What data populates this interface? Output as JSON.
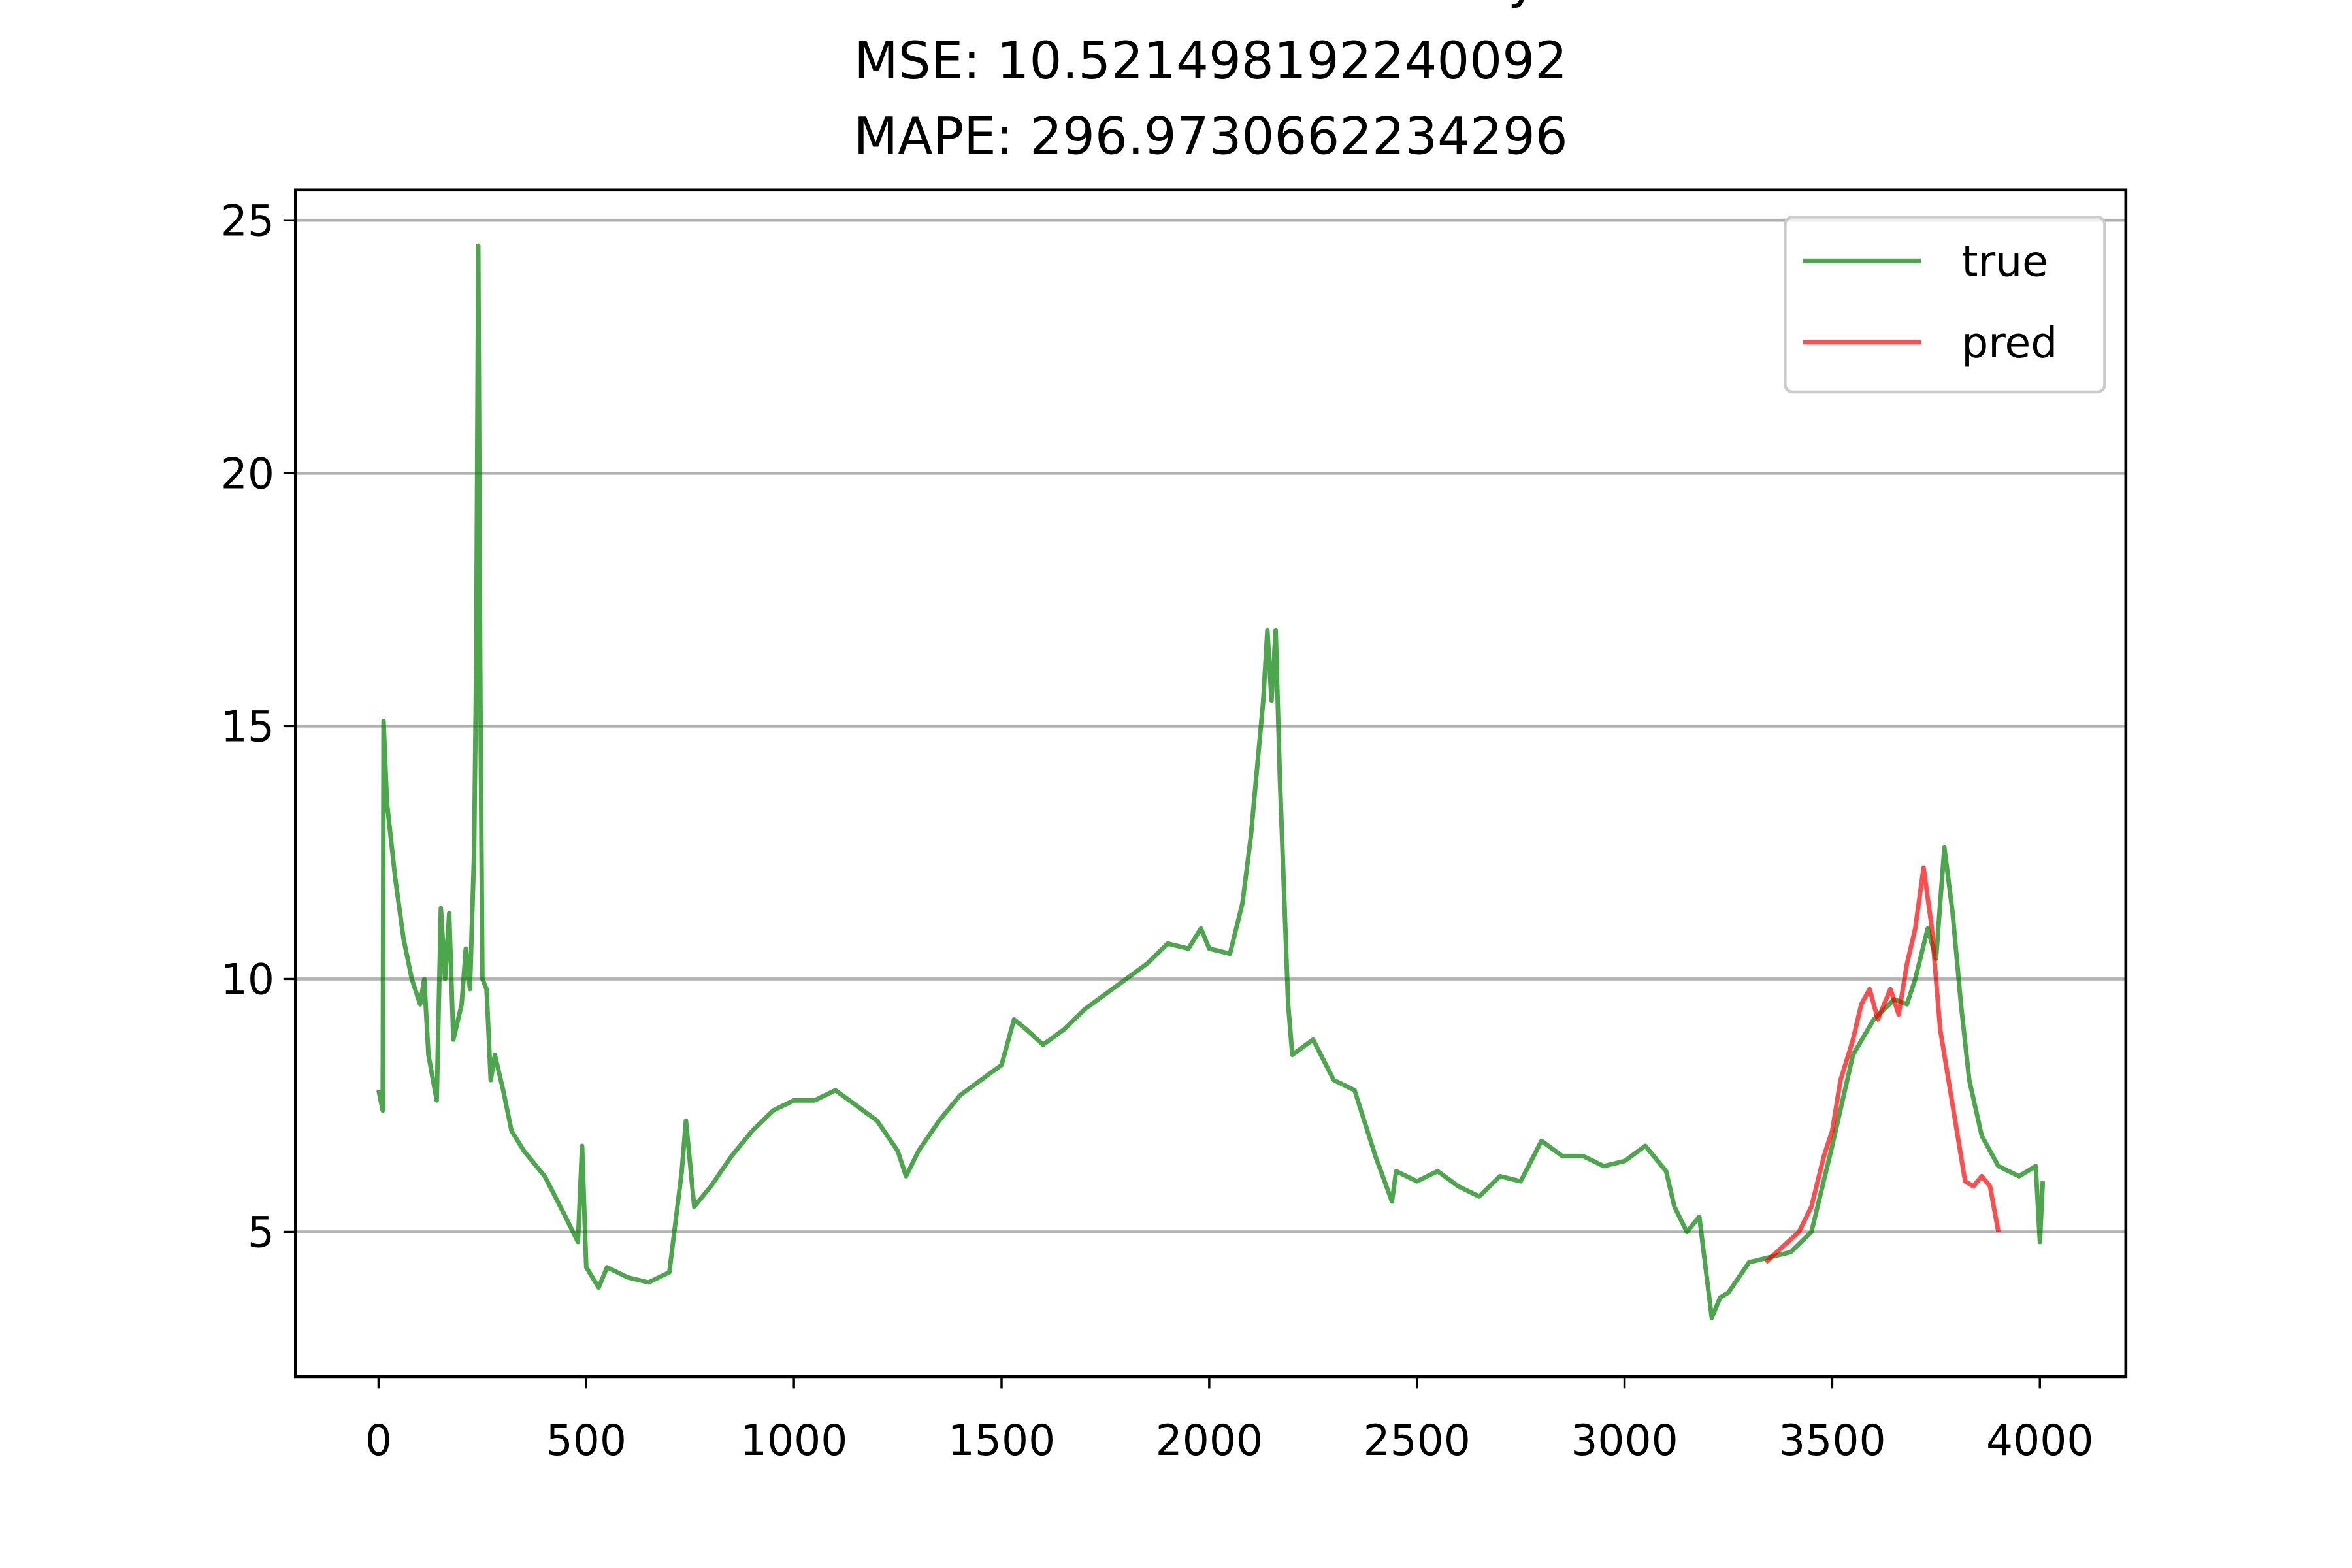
{
  "chart_data": {
    "type": "line",
    "title": "LSTM Russia One-Year Treasury Yield",
    "subtitle": "MSE: 10.521498192240092",
    "caption": "MAPE: 296.9730662234296",
    "xlim": [
      -200,
      4207
    ],
    "ylim": [
      2.14,
      25.6
    ],
    "xticks": [
      0,
      500,
      1000,
      1500,
      2000,
      2500,
      3000,
      3500,
      4000
    ],
    "yticks": [
      5,
      10,
      15,
      20,
      25
    ],
    "grid": "y",
    "legend": "upper right",
    "series": [
      {
        "name": "true",
        "color": "#008000",
        "x": [
          0,
          10,
          12,
          20,
          40,
          60,
          80,
          100,
          110,
          120,
          140,
          150,
          160,
          170,
          180,
          200,
          210,
          220,
          230,
          235,
          240,
          245,
          250,
          260,
          270,
          280,
          300,
          320,
          350,
          400,
          450,
          480,
          490,
          500,
          530,
          550,
          600,
          650,
          700,
          730,
          740,
          760,
          800,
          850,
          900,
          950,
          1000,
          1050,
          1100,
          1150,
          1200,
          1250,
          1270,
          1300,
          1350,
          1400,
          1450,
          1500,
          1530,
          1560,
          1600,
          1650,
          1700,
          1750,
          1800,
          1850,
          1900,
          1950,
          1980,
          2000,
          2050,
          2080,
          2100,
          2130,
          2140,
          2150,
          2160,
          2170,
          2190,
          2200,
          2250,
          2300,
          2350,
          2400,
          2440,
          2450,
          2500,
          2550,
          2600,
          2650,
          2700,
          2750,
          2800,
          2850,
          2900,
          2950,
          3000,
          3050,
          3100,
          3120,
          3150,
          3180,
          3210,
          3230,
          3250,
          3300,
          3350,
          3400,
          3450,
          3500,
          3550,
          3600,
          3650,
          3680,
          3700,
          3730,
          3750,
          3770,
          3790,
          3810,
          3830,
          3860,
          3900,
          3950,
          3990,
          4000,
          4007
        ],
        "values": [
          7.8,
          7.4,
          15.1,
          13.5,
          12,
          10.8,
          10,
          9.5,
          10,
          8.5,
          7.6,
          11.4,
          10,
          11.3,
          8.8,
          9.5,
          10.6,
          9.8,
          12.5,
          16.2,
          24.5,
          15.8,
          10,
          9.8,
          8,
          8.5,
          7.8,
          7,
          6.6,
          6.1,
          5.3,
          4.8,
          6.7,
          4.3,
          3.9,
          4.3,
          4.1,
          4.0,
          4.2,
          6.2,
          7.2,
          5.5,
          5.9,
          6.5,
          7.0,
          7.4,
          7.6,
          7.6,
          7.8,
          7.5,
          7.2,
          6.6,
          6.1,
          6.6,
          7.2,
          7.7,
          8.0,
          8.3,
          9.2,
          9.0,
          8.7,
          9.0,
          9.4,
          9.7,
          10.0,
          10.3,
          10.7,
          10.6,
          11.0,
          10.6,
          10.5,
          11.5,
          12.8,
          15.5,
          16.9,
          15.5,
          16.9,
          14,
          9.5,
          8.5,
          8.8,
          8.0,
          7.8,
          6.5,
          5.6,
          6.2,
          6.0,
          6.2,
          5.9,
          5.7,
          6.1,
          6.0,
          6.8,
          6.5,
          6.5,
          6.3,
          6.4,
          6.7,
          6.2,
          5.5,
          5.0,
          5.3,
          3.3,
          3.7,
          3.8,
          4.4,
          4.5,
          4.6,
          5.0,
          6.7,
          8.5,
          9.2,
          9.6,
          9.5,
          10.0,
          11.0,
          10.4,
          12.6,
          11.3,
          9.5,
          8.0,
          6.9,
          6.3,
          6.1,
          6.3,
          4.8,
          6.0
        ]
      },
      {
        "name": "pred",
        "color": "#ff0000",
        "x": [
          3340,
          3380,
          3420,
          3450,
          3480,
          3500,
          3520,
          3550,
          3570,
          3590,
          3610,
          3640,
          3660,
          3680,
          3700,
          3720,
          3740,
          3760,
          3780,
          3800,
          3820,
          3840,
          3860,
          3880,
          3900
        ],
        "values": [
          4.4,
          4.7,
          5.0,
          5.5,
          6.5,
          7.0,
          8.0,
          8.8,
          9.5,
          9.8,
          9.2,
          9.8,
          9.3,
          10.3,
          11.0,
          12.2,
          11.0,
          9.0,
          8.0,
          7.0,
          6.0,
          5.9,
          6.1,
          5.9,
          5.0
        ]
      }
    ]
  }
}
